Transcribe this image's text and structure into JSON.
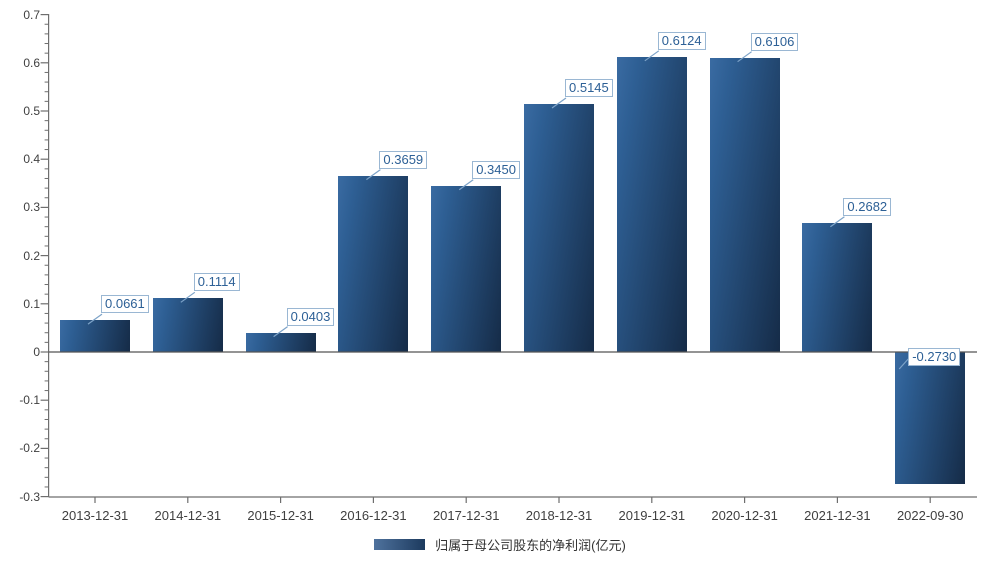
{
  "chart_data": {
    "type": "bar",
    "title": "",
    "xlabel": "",
    "ylabel": "",
    "categories": [
      "2013-12-31",
      "2014-12-31",
      "2015-12-31",
      "2016-12-31",
      "2017-12-31",
      "2018-12-31",
      "2019-12-31",
      "2020-12-31",
      "2021-12-31",
      "2022-09-30"
    ],
    "series": [
      {
        "name": "归属于母公司股东的净利润(亿元)",
        "values": [
          0.0661,
          0.1114,
          0.0403,
          0.3659,
          0.345,
          0.5145,
          0.6124,
          0.6106,
          0.2682,
          -0.273
        ]
      }
    ],
    "value_labels": [
      "0.0661",
      "0.1114",
      "0.0403",
      "0.3659",
      "0.3450",
      "0.5145",
      "0.6124",
      "0.6106",
      "0.2682",
      "-0.2730"
    ],
    "ylim": [
      -0.3,
      0.7
    ],
    "y_major_tick_labels": [
      "0.7",
      "0.6",
      "0.5",
      "0.4",
      "0.3",
      "0.2",
      "0.1",
      "0",
      "-0.1",
      "-0.2",
      "-0.3"
    ],
    "y_major_step": 0.1,
    "y_minor_step": 0.02,
    "grid": false,
    "legend": "归属于母公司股东的净利润(亿元)",
    "legend_position": "bottom",
    "colors": {
      "bar_gradient_start": "#2e5f94",
      "bar_gradient_end": "#152b47",
      "callout_border": "#9ab7d3",
      "callout_text": "#2d6096",
      "connector_line": "#7da3c8",
      "axis_line": "#6e6e6e",
      "zero_line": "#555555",
      "tick_text": "#404040",
      "legend_text": "#333333",
      "background": "#ffffff"
    }
  }
}
